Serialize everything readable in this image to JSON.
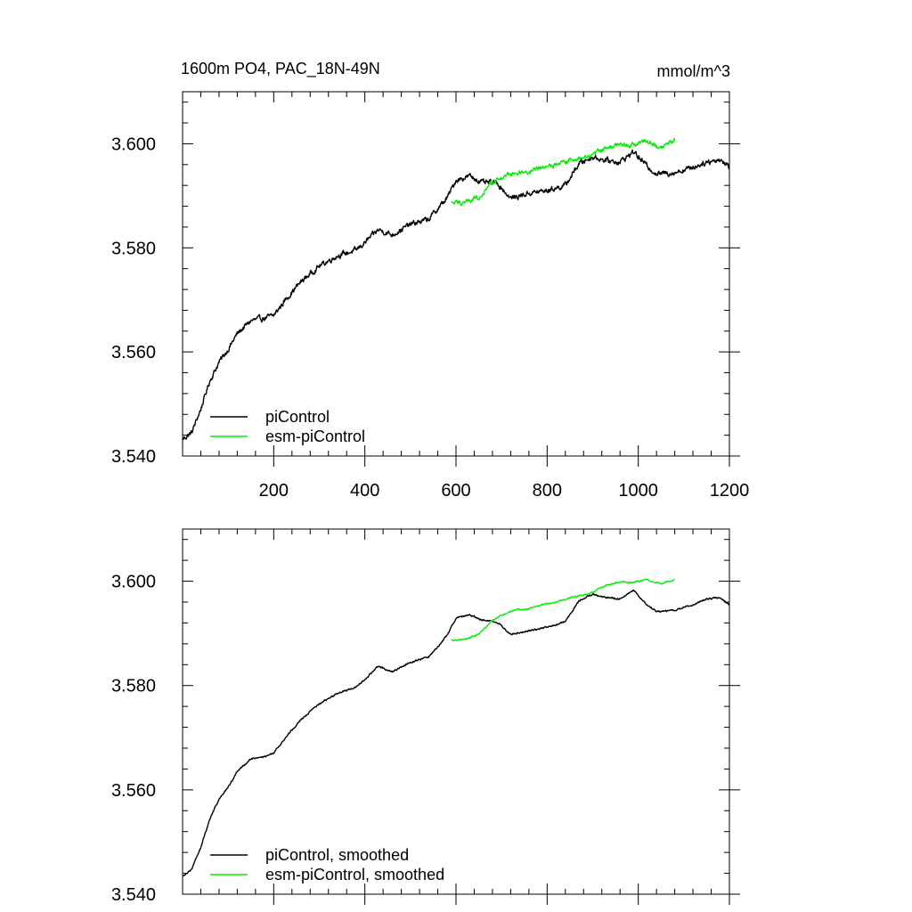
{
  "colors": {
    "picontrol": "#000000",
    "esm": "#00ee00",
    "axis": "#000000"
  },
  "chart_data": [
    {
      "type": "line",
      "title_left": "1600m PO4, PAC_18N-49N",
      "title_right": "mmol/m^3",
      "xlim": [
        0,
        1200
      ],
      "ylim": [
        3.54,
        3.61
      ],
      "yticks": [
        3.54,
        3.56,
        3.58,
        3.6
      ],
      "ytick_labels": [
        "3.540",
        "3.560",
        "3.580",
        "3.600"
      ],
      "xticks": [
        200,
        400,
        600,
        800,
        1000,
        1200
      ],
      "xtick_labels": [
        "200",
        "400",
        "600",
        "800",
        "1000",
        "1200"
      ],
      "legend": [
        "piControl",
        "esm-piControl"
      ],
      "series": [
        {
          "name": "piControl",
          "color": "#000000",
          "noise": 0.0008,
          "x": [
            0,
            20,
            40,
            60,
            80,
            100,
            120,
            150,
            180,
            200,
            230,
            260,
            300,
            340,
            380,
            400,
            430,
            460,
            500,
            540,
            560,
            580,
            600,
            630,
            660,
            690,
            720,
            760,
            800,
            840,
            870,
            900,
            930,
            960,
            990,
            1010,
            1040,
            1080,
            1120,
            1150,
            1180,
            1200
          ],
          "y": [
            3.5432,
            3.5445,
            3.549,
            3.5545,
            3.558,
            3.5605,
            3.5635,
            3.566,
            3.5665,
            3.567,
            3.5705,
            3.5735,
            3.5765,
            3.5785,
            3.5795,
            3.581,
            3.5835,
            3.5825,
            3.5845,
            3.5855,
            3.5875,
            3.5895,
            3.593,
            3.5938,
            3.5925,
            3.5925,
            3.5895,
            3.5905,
            3.591,
            3.592,
            3.5962,
            3.5975,
            3.5968,
            3.5965,
            3.5985,
            3.5965,
            3.5942,
            3.5945,
            3.5955,
            3.5965,
            3.597,
            3.5955
          ]
        },
        {
          "name": "esm-piControl",
          "color": "#00ee00",
          "noise": 0.0007,
          "x": [
            590,
            620,
            650,
            680,
            700,
            730,
            760,
            790,
            820,
            860,
            900,
            930,
            960,
            990,
            1020,
            1050,
            1080
          ],
          "y": [
            3.5885,
            3.5888,
            3.5898,
            3.5925,
            3.5935,
            3.5945,
            3.5945,
            3.5955,
            3.596,
            3.597,
            3.5978,
            3.5993,
            3.5998,
            3.5998,
            3.6005,
            3.5995,
            3.6005
          ]
        }
      ]
    },
    {
      "type": "line",
      "xlim": [
        0,
        1200
      ],
      "ylim": [
        3.54,
        3.61
      ],
      "yticks": [
        3.54,
        3.56,
        3.58,
        3.6
      ],
      "ytick_labels": [
        "3.540",
        "3.560",
        "3.580",
        "3.600"
      ],
      "xticks": [
        200,
        400,
        600,
        800,
        1000,
        1200
      ],
      "legend": [
        "piControl, smoothed",
        "esm-piControl, smoothed"
      ],
      "series": [
        {
          "name": "piControl, smoothed",
          "color": "#000000",
          "noise": 0.00025,
          "x": [
            0,
            20,
            40,
            60,
            80,
            100,
            120,
            150,
            180,
            200,
            230,
            260,
            300,
            340,
            380,
            400,
            430,
            460,
            500,
            540,
            560,
            580,
            600,
            630,
            660,
            690,
            720,
            760,
            800,
            840,
            870,
            900,
            930,
            960,
            990,
            1010,
            1040,
            1080,
            1120,
            1150,
            1180,
            1200
          ],
          "y": [
            3.5435,
            3.5448,
            3.549,
            3.5545,
            3.5582,
            3.5605,
            3.5635,
            3.566,
            3.5663,
            3.567,
            3.5705,
            3.5735,
            3.5765,
            3.5785,
            3.5797,
            3.5812,
            3.5837,
            3.5826,
            3.5845,
            3.5855,
            3.5875,
            3.5895,
            3.593,
            3.5935,
            3.5925,
            3.5922,
            3.5898,
            3.5905,
            3.5912,
            3.5922,
            3.5962,
            3.5975,
            3.5968,
            3.5966,
            3.5983,
            3.5962,
            3.5942,
            3.5944,
            3.5955,
            3.5966,
            3.5968,
            3.5955
          ]
        },
        {
          "name": "esm-piControl, smoothed",
          "color": "#00ee00",
          "noise": 0.00022,
          "x": [
            590,
            620,
            650,
            680,
            700,
            730,
            760,
            790,
            820,
            860,
            900,
            930,
            960,
            990,
            1020,
            1050,
            1080
          ],
          "y": [
            3.5887,
            3.5889,
            3.5898,
            3.5925,
            3.5935,
            3.5945,
            3.5947,
            3.5955,
            3.596,
            3.597,
            3.5978,
            3.5993,
            3.5998,
            3.5998,
            3.6003,
            3.5995,
            3.6003
          ]
        }
      ]
    }
  ]
}
